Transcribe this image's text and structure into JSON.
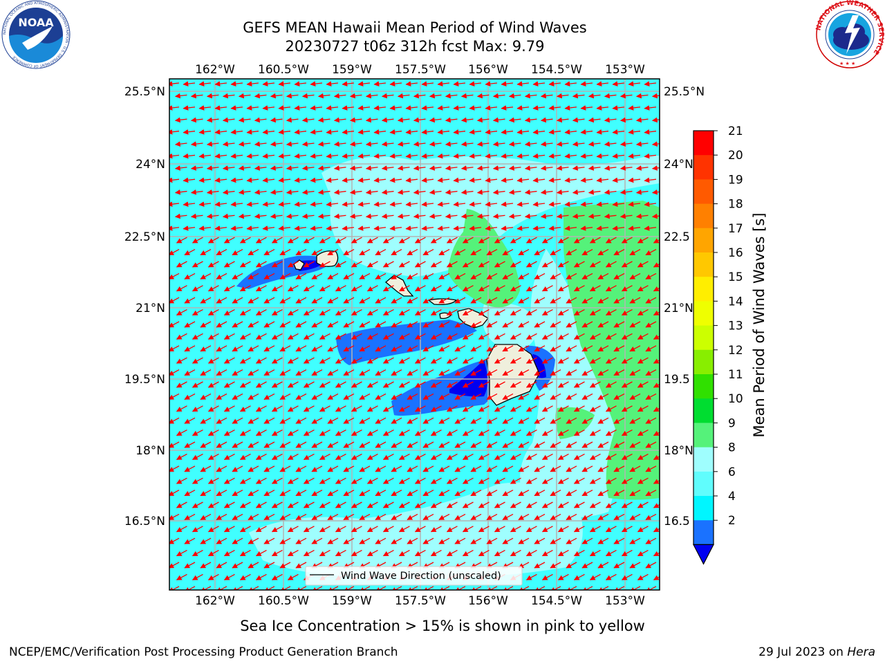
{
  "title": {
    "line1": "GEFS MEAN Hawaii Mean Period of Wind Waves",
    "line2": "20230727 t06z 312h fcst   Max: 9.79"
  },
  "map": {
    "lon_labels": [
      "162°W",
      "160.5°W",
      "159°W",
      "157.5°W",
      "156°W",
      "154.5°W",
      "153°W"
    ],
    "lat_labels_left": [
      "25.5°N",
      "24°N",
      "22.5°N",
      "21°N",
      "19.5°N",
      "18°N",
      "16.5°N"
    ],
    "lat_labels_right": [
      "25.5°N",
      "24°N",
      "22.5",
      "21°N",
      "19.5",
      "18°N",
      "16.5"
    ],
    "legend_label": "Wind Wave Direction (unscaled)",
    "colors": {
      "ocean_base": "#40ffff",
      "band_8_9": "#9ffefe",
      "band_9_10": "#55f27a",
      "band_2_4": "#1a72ff",
      "band_below_2": "#0000f0",
      "land": "#efefdc",
      "arrow": "#ff0000",
      "grid": "#b4b4b4"
    }
  },
  "colorbar": {
    "label": "Mean Period of Wind Waves [s]",
    "ticks": [
      "21",
      "20",
      "19",
      "18",
      "17",
      "16",
      "15",
      "14",
      "13",
      "12",
      "11",
      "10",
      "9",
      "8",
      "6",
      "4",
      "2"
    ],
    "colors": [
      "#ff0000",
      "#ff3300",
      "#ff5a00",
      "#ff8000",
      "#ffa500",
      "#ffc800",
      "#ffee00",
      "#efff00",
      "#ccff00",
      "#88ee00",
      "#30e000",
      "#00dd30",
      "#55f27a",
      "#9ffefe",
      "#60fdfd",
      "#00f6ff",
      "#1a72ff"
    ],
    "under_color": "#0000f0"
  },
  "footer": {
    "sea_ice_note": "Sea Ice Concentration > 15% is shown in pink to yellow",
    "credit_left": "NCEP/EMC/Verification Post Processing Product Generation Branch",
    "date": "29 Jul 2023 on ",
    "machine": "Hera"
  },
  "logos": {
    "noaa_text": "NOAA",
    "noaa_ring": "NATIONAL OCEANIC AND ATMOSPHERIC ADMINISTRATION · U.S. DEPARTMENT OF COMMERCE",
    "nws_ring": "NATIONAL WEATHER SERVICE"
  }
}
